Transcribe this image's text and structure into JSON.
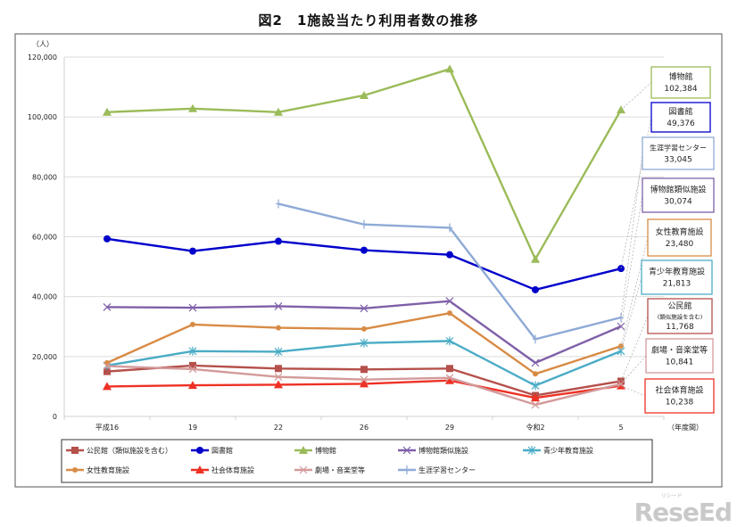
{
  "title": "図2　1施設当たり利用者数の推移",
  "watermark": {
    "text": "ReseEd",
    "ruby": "リシード"
  },
  "chart_data": {
    "type": "line",
    "title": "図2　1施設当たり利用者数の推移",
    "ylabel": "（人）",
    "xlabel": "（年度間）",
    "ylim": [
      0,
      120000
    ],
    "yticks": [
      "0",
      "20,000",
      "40,000",
      "60,000",
      "80,000",
      "100,000",
      "120,000"
    ],
    "ytick_values": [
      0,
      20000,
      40000,
      60000,
      80000,
      100000,
      120000
    ],
    "grid": true,
    "legend_position": "bottom",
    "categories": [
      "平成16",
      "19",
      "22",
      "26",
      "29",
      "令和2",
      "5"
    ],
    "series": [
      {
        "name": "公民館（類似施設を含む）",
        "color": "#b5504b",
        "marker": "square",
        "values": [
          15000,
          17000,
          16000,
          15700,
          16000,
          7000,
          11768
        ],
        "callout": {
          "lines": [
            "公民館",
            "(類似施設を含む)"
          ],
          "value": "11,768"
        }
      },
      {
        "name": "図書館",
        "color": "#0000cc",
        "marker": "circle",
        "values": [
          59300,
          55200,
          58500,
          55500,
          54000,
          42300,
          49376
        ],
        "callout": {
          "lines": [
            "図書館"
          ],
          "value": "49,376"
        }
      },
      {
        "name": "博物館",
        "color": "#9bbb59",
        "marker": "triangle",
        "values": [
          101600,
          102800,
          101600,
          107200,
          116000,
          52500,
          102384
        ],
        "callout": {
          "lines": [
            "博物館"
          ],
          "value": "102,384"
        }
      },
      {
        "name": "博物館類似施設",
        "color": "#7f60a8",
        "marker": "x",
        "values": [
          36500,
          36300,
          36800,
          36100,
          38500,
          17900,
          30074
        ],
        "callout": {
          "lines": [
            "博物館類似施設"
          ],
          "value": "30,074"
        }
      },
      {
        "name": "青少年教育施設",
        "color": "#4bacc6",
        "marker": "asterisk",
        "values": [
          17000,
          21800,
          21600,
          24500,
          25200,
          10300,
          21813
        ],
        "callout": {
          "lines": [
            "青少年教育施設"
          ],
          "value": "21,813"
        }
      },
      {
        "name": "女性教育施設",
        "color": "#d88b45",
        "marker": "dot",
        "values": [
          17900,
          30700,
          29600,
          29200,
          34500,
          14200,
          23480
        ],
        "callout": {
          "lines": [
            "女性教育施設"
          ],
          "value": "23,480"
        }
      },
      {
        "name": "社会体育施設",
        "color": "#ee3124",
        "marker": "triangle",
        "values": [
          10000,
          10400,
          10600,
          10900,
          12000,
          6200,
          10238
        ],
        "callout": {
          "lines": [
            "社会体育施設"
          ],
          "value": "10,238"
        }
      },
      {
        "name": "劇場・音楽堂等",
        "color": "#d39a9a",
        "marker": "x",
        "values": [
          16800,
          15800,
          13200,
          12300,
          12900,
          3900,
          10841
        ],
        "callout": {
          "lines": [
            "劇場・音楽堂等"
          ],
          "value": "10,841"
        }
      },
      {
        "name": "生涯学習センター",
        "color": "#8eaad6",
        "marker": "plus",
        "values": [
          null,
          null,
          71000,
          64100,
          63000,
          25800,
          33045
        ],
        "callout": {
          "lines": [
            "生涯学習センター"
          ],
          "value": "33,045"
        }
      }
    ]
  }
}
